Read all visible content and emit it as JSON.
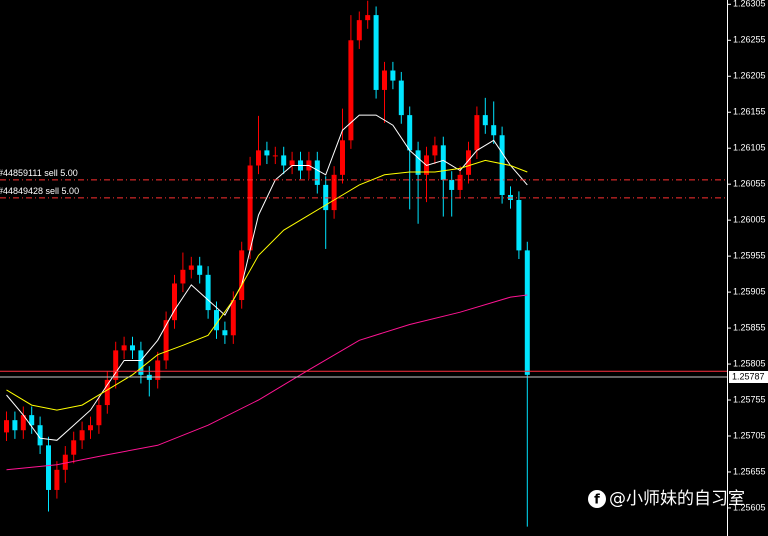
{
  "chart_data": {
    "type": "candlestick",
    "up_color": "#ff0000",
    "down_color": "#00e5ff",
    "open": [
      1.2571,
      1.25727,
      1.25713,
      1.25734,
      1.2572,
      1.25692,
      1.2563,
      1.25658,
      1.25679,
      1.25699,
      1.25713,
      1.2572,
      1.25748,
      1.25783,
      1.25824,
      1.25831,
      1.25824,
      1.2579,
      1.25783,
      1.2581,
      1.25866,
      1.25917,
      1.25936,
      1.25942,
      1.25929,
      1.2588,
      1.25852,
      1.25845,
      1.25894,
      1.25963,
      1.26081,
      1.26102,
      1.26095,
      1.26095,
      1.26081,
      1.26088,
      1.26074,
      1.26088,
      1.26054,
      1.26019,
      1.26068,
      1.26116,
      1.26255,
      1.26283,
      1.2629,
      1.26186,
      1.26213,
      1.26199,
      1.26151,
      1.26102,
      1.26068,
      1.26095,
      1.26109,
      1.26061,
      1.26047,
      1.26068,
      1.26102,
      1.26151,
      1.26137,
      1.26123,
      1.2604,
      1.26033,
      1.25963
    ],
    "high": [
      1.25739,
      1.25739,
      1.25746,
      1.25746,
      1.25732,
      1.25704,
      1.2567,
      1.25691,
      1.25711,
      1.25725,
      1.25732,
      1.2576,
      1.25795,
      1.25836,
      1.25843,
      1.25843,
      1.25836,
      1.25802,
      1.25822,
      1.25878,
      1.25929,
      1.2596,
      1.25954,
      1.25954,
      1.25941,
      1.25892,
      1.25864,
      1.25906,
      1.25975,
      1.26093,
      1.2615,
      1.26114,
      1.26107,
      1.26107,
      1.261,
      1.261,
      1.261,
      1.261,
      1.26066,
      1.2608,
      1.2616,
      1.2629,
      1.26295,
      1.2631,
      1.26302,
      1.26225,
      1.26225,
      1.26211,
      1.26163,
      1.26114,
      1.26107,
      1.26121,
      1.26121,
      1.26073,
      1.2608,
      1.26114,
      1.26163,
      1.26175,
      1.2617,
      1.26135,
      1.26052,
      1.26045,
      1.25975
    ],
    "low": [
      1.25698,
      1.25701,
      1.25701,
      1.25708,
      1.2568,
      1.256,
      1.25618,
      1.2564,
      1.25667,
      1.25687,
      1.25701,
      1.25708,
      1.25736,
      1.25771,
      1.25812,
      1.25812,
      1.25778,
      1.2576,
      1.25771,
      1.25798,
      1.25854,
      1.25905,
      1.25924,
      1.25917,
      1.25868,
      1.2584,
      1.25833,
      1.25833,
      1.25882,
      1.25951,
      1.26069,
      1.26083,
      1.26083,
      1.26069,
      1.26069,
      1.26062,
      1.26062,
      1.26042,
      1.25965,
      1.26007,
      1.26056,
      1.26104,
      1.26243,
      1.26271,
      1.26174,
      1.2614,
      1.26187,
      1.26139,
      1.2602,
      1.26,
      1.2603,
      1.26083,
      1.2601,
      1.2601,
      1.26035,
      1.26056,
      1.2609,
      1.26125,
      1.26111,
      1.26028,
      1.26021,
      1.25951,
      1.25579
    ],
    "close": [
      1.25727,
      1.25713,
      1.25734,
      1.2572,
      1.25692,
      1.2563,
      1.25658,
      1.25679,
      1.25699,
      1.25713,
      1.2572,
      1.25748,
      1.25783,
      1.25824,
      1.25831,
      1.25824,
      1.2579,
      1.25783,
      1.2581,
      1.25866,
      1.25917,
      1.25936,
      1.25942,
      1.25929,
      1.2588,
      1.25852,
      1.25845,
      1.25894,
      1.25963,
      1.26081,
      1.26102,
      1.26095,
      1.26095,
      1.26081,
      1.26088,
      1.26074,
      1.26088,
      1.26054,
      1.26019,
      1.26068,
      1.26116,
      1.26255,
      1.26283,
      1.2629,
      1.26186,
      1.26213,
      1.26199,
      1.26151,
      1.26102,
      1.26068,
      1.26095,
      1.26109,
      1.26061,
      1.26047,
      1.26068,
      1.26102,
      1.26151,
      1.26137,
      1.26123,
      1.2604,
      1.26033,
      1.25963,
      1.2579
    ],
    "moving_averages": [
      {
        "color": "#ffffff",
        "x": [
          0,
          2,
          4,
          6,
          8,
          10,
          12,
          14,
          16,
          18,
          20,
          22,
          24,
          26,
          28,
          30,
          32,
          34,
          36,
          38,
          40,
          42,
          44,
          46,
          48,
          50,
          52,
          54,
          56,
          58,
          60,
          62
        ],
        "values": [
          1.25762,
          1.25734,
          1.25702,
          1.25699,
          1.2572,
          1.25741,
          1.25776,
          1.2581,
          1.2581,
          1.25838,
          1.2588,
          1.25915,
          1.25894,
          1.25873,
          1.25915,
          1.26012,
          1.26061,
          1.26081,
          1.26081,
          1.26068,
          1.2613,
          1.26151,
          1.26151,
          1.26137,
          1.26102,
          1.26081,
          1.26088,
          1.26074,
          1.26102,
          1.26116,
          1.26081,
          1.26054
        ]
      },
      {
        "color": "#ffff00",
        "x": [
          0,
          3,
          6,
          9,
          12,
          15,
          18,
          21,
          24,
          27,
          30,
          33,
          36,
          39,
          42,
          45,
          48,
          51,
          54,
          57,
          60,
          62
        ],
        "values": [
          1.25769,
          1.25748,
          1.25741,
          1.25748,
          1.25769,
          1.2579,
          1.25818,
          1.25831,
          1.25845,
          1.25894,
          1.25956,
          1.25991,
          1.26012,
          1.26033,
          1.26054,
          1.26068,
          1.26072,
          1.26072,
          1.26077,
          1.26088,
          1.26081,
          1.26072
        ]
      },
      {
        "color": "#ff1493",
        "x": [
          0,
          6,
          12,
          18,
          24,
          30,
          36,
          42,
          48,
          54,
          60,
          62
        ],
        "values": [
          1.25658,
          1.25665,
          1.25679,
          1.25692,
          1.2572,
          1.25755,
          1.25797,
          1.25838,
          1.2586,
          1.25877,
          1.25898,
          1.25901
        ]
      }
    ],
    "orders": [
      {
        "label": "#44859111 sell 5.00",
        "price": 1.26061
      },
      {
        "label": "#44849428 sell 5.00",
        "price": 1.26036
      }
    ],
    "ask_line": 1.25795,
    "bid_price": 1.25787,
    "ylim": [
      1.25566,
      1.26311
    ],
    "yticks": [
      1.26305,
      1.26255,
      1.26205,
      1.26155,
      1.26105,
      1.26055,
      1.26005,
      1.25955,
      1.25905,
      1.25855,
      1.25805,
      1.25755,
      1.25705,
      1.25655,
      1.25605
    ],
    "watermark": "@小师妹的自习室"
  }
}
